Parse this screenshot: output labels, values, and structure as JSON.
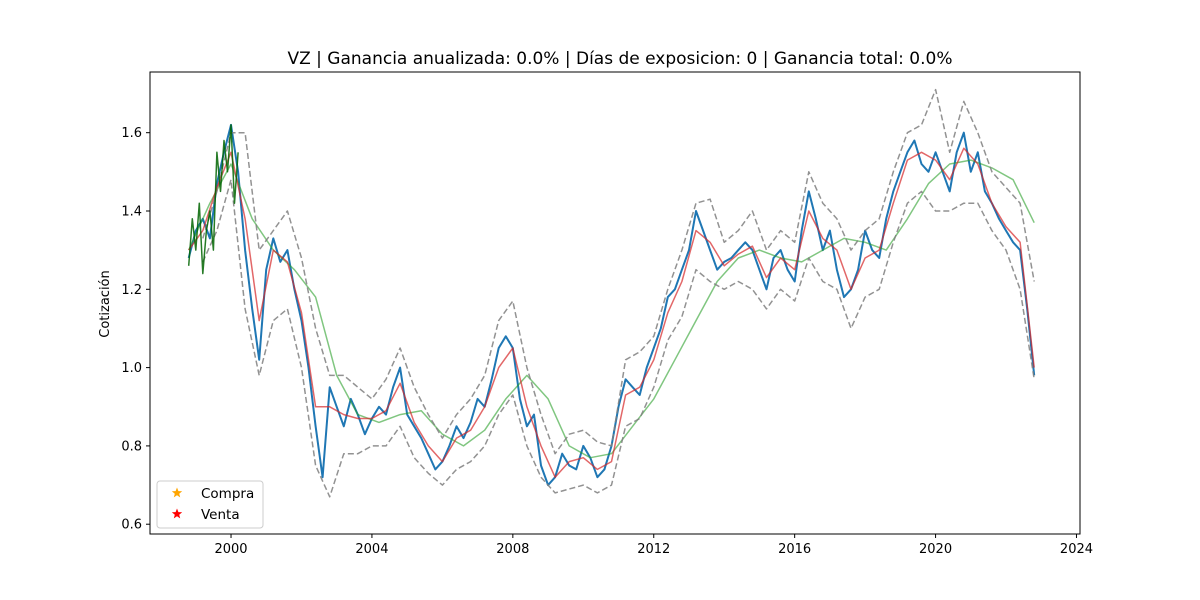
{
  "chart_data": {
    "type": "line",
    "title": "VZ | Ganancia anualizada:   0.0% | Días de exposicion:      0 | Ganancia total:   0.0%",
    "xlabel": "",
    "ylabel": "Cotización",
    "xlim": [
      1997.7,
      2024.1
    ],
    "ylim": [
      0.575,
      1.755
    ],
    "x_ticks": [
      2000,
      2004,
      2008,
      2012,
      2016,
      2020,
      2024
    ],
    "y_ticks": [
      0.6,
      0.8,
      1.0,
      1.2,
      1.4,
      1.6
    ],
    "grid": false,
    "legend": {
      "placement": "lower-left",
      "entries": [
        {
          "label": "Compra",
          "marker": "star",
          "color": "#ffa500"
        },
        {
          "label": "Venta",
          "marker": "star",
          "color": "#ff0000"
        }
      ]
    },
    "colors": {
      "price": "#1f77b4",
      "short_ma": "#d62728",
      "long_ma": "#2ca02c",
      "bands": "#7f7f7f",
      "early_segment": "#006400"
    },
    "series": [
      {
        "role": "price",
        "style": "solid",
        "x": [
          1998.8,
          1999.0,
          1999.2,
          1999.4,
          1999.6,
          1999.8,
          2000.0,
          2000.2,
          2000.4,
          2000.6,
          2000.8,
          2001.0,
          2001.2,
          2001.4,
          2001.6,
          2001.8,
          2002.0,
          2002.2,
          2002.4,
          2002.6,
          2002.8,
          2003.0,
          2003.2,
          2003.4,
          2003.6,
          2003.8,
          2004.0,
          2004.2,
          2004.4,
          2004.6,
          2004.8,
          2005.0,
          2005.2,
          2005.4,
          2005.6,
          2005.8,
          2006.0,
          2006.2,
          2006.4,
          2006.6,
          2006.8,
          2007.0,
          2007.2,
          2007.4,
          2007.6,
          2007.8,
          2008.0,
          2008.2,
          2008.4,
          2008.6,
          2008.8,
          2009.0,
          2009.2,
          2009.4,
          2009.6,
          2009.8,
          2010.0,
          2010.2,
          2010.4,
          2010.6,
          2010.8,
          2011.0,
          2011.2,
          2011.4,
          2011.6,
          2011.8,
          2012.0,
          2012.2,
          2012.4,
          2012.6,
          2012.8,
          2013.0,
          2013.2,
          2013.4,
          2013.6,
          2013.8,
          2014.0,
          2014.2,
          2014.4,
          2014.6,
          2014.8,
          2015.0,
          2015.2,
          2015.4,
          2015.6,
          2015.8,
          2016.0,
          2016.2,
          2016.4,
          2016.6,
          2016.8,
          2017.0,
          2017.2,
          2017.4,
          2017.6,
          2017.8,
          2018.0,
          2018.2,
          2018.4,
          2018.6,
          2018.8,
          2019.0,
          2019.2,
          2019.4,
          2019.6,
          2019.8,
          2020.0,
          2020.2,
          2020.4,
          2020.6,
          2020.8,
          2021.0,
          2021.2,
          2021.4,
          2021.6,
          2021.8,
          2022.0,
          2022.2,
          2022.4,
          2022.6,
          2022.8
        ],
        "y": [
          1.28,
          1.35,
          1.38,
          1.33,
          1.47,
          1.55,
          1.62,
          1.5,
          1.3,
          1.15,
          1.02,
          1.25,
          1.33,
          1.27,
          1.3,
          1.2,
          1.12,
          1.0,
          0.85,
          0.72,
          0.95,
          0.9,
          0.85,
          0.92,
          0.88,
          0.83,
          0.87,
          0.9,
          0.88,
          0.95,
          1.0,
          0.88,
          0.85,
          0.82,
          0.78,
          0.74,
          0.76,
          0.8,
          0.85,
          0.82,
          0.86,
          0.92,
          0.9,
          0.97,
          1.05,
          1.08,
          1.05,
          0.92,
          0.85,
          0.88,
          0.75,
          0.7,
          0.72,
          0.78,
          0.75,
          0.74,
          0.8,
          0.77,
          0.72,
          0.74,
          0.8,
          0.9,
          0.97,
          0.95,
          0.93,
          1.0,
          1.05,
          1.1,
          1.18,
          1.2,
          1.25,
          1.3,
          1.4,
          1.35,
          1.3,
          1.25,
          1.27,
          1.28,
          1.3,
          1.32,
          1.3,
          1.25,
          1.2,
          1.28,
          1.3,
          1.25,
          1.22,
          1.35,
          1.45,
          1.38,
          1.3,
          1.35,
          1.25,
          1.18,
          1.2,
          1.25,
          1.35,
          1.3,
          1.28,
          1.38,
          1.45,
          1.5,
          1.55,
          1.58,
          1.52,
          1.5,
          1.55,
          1.5,
          1.45,
          1.55,
          1.6,
          1.5,
          1.55,
          1.45,
          1.42,
          1.38,
          1.35,
          1.32,
          1.3,
          1.15,
          0.98
        ]
      },
      {
        "role": "short_ma",
        "style": "solid",
        "x": [
          1998.8,
          1999.2,
          1999.6,
          2000.0,
          2000.4,
          2000.8,
          2001.2,
          2001.6,
          2002.0,
          2002.4,
          2002.8,
          2003.2,
          2003.6,
          2004.0,
          2004.4,
          2004.8,
          2005.2,
          2005.6,
          2006.0,
          2006.4,
          2006.8,
          2007.2,
          2007.6,
          2008.0,
          2008.4,
          2008.8,
          2009.2,
          2009.6,
          2010.0,
          2010.4,
          2010.8,
          2011.2,
          2011.6,
          2012.0,
          2012.4,
          2012.8,
          2013.2,
          2013.6,
          2014.0,
          2014.4,
          2014.8,
          2015.2,
          2015.6,
          2016.0,
          2016.4,
          2016.8,
          2017.2,
          2017.6,
          2018.0,
          2018.4,
          2018.8,
          2019.2,
          2019.6,
          2020.0,
          2020.4,
          2020.8,
          2021.2,
          2021.6,
          2022.0,
          2022.4,
          2022.8
        ],
        "y": [
          1.3,
          1.35,
          1.46,
          1.55,
          1.38,
          1.12,
          1.3,
          1.27,
          1.14,
          0.9,
          0.9,
          0.88,
          0.87,
          0.87,
          0.89,
          0.96,
          0.86,
          0.8,
          0.76,
          0.82,
          0.84,
          0.9,
          1.0,
          1.05,
          0.9,
          0.8,
          0.72,
          0.76,
          0.77,
          0.74,
          0.76,
          0.93,
          0.95,
          1.02,
          1.14,
          1.22,
          1.35,
          1.32,
          1.26,
          1.29,
          1.31,
          1.23,
          1.28,
          1.25,
          1.4,
          1.33,
          1.3,
          1.2,
          1.28,
          1.3,
          1.42,
          1.53,
          1.55,
          1.53,
          1.48,
          1.56,
          1.52,
          1.42,
          1.36,
          1.32,
          1.0
        ]
      },
      {
        "role": "long_ma",
        "style": "solid",
        "x": [
          1998.8,
          1999.4,
          2000.0,
          2000.6,
          2001.2,
          2001.8,
          2002.4,
          2003.0,
          2003.6,
          2004.2,
          2004.8,
          2005.4,
          2006.0,
          2006.6,
          2007.2,
          2007.8,
          2008.4,
          2009.0,
          2009.6,
          2010.2,
          2010.8,
          2011.4,
          2012.0,
          2012.6,
          2013.2,
          2013.8,
          2014.4,
          2015.0,
          2015.6,
          2016.2,
          2016.8,
          2017.4,
          2018.0,
          2018.6,
          2019.2,
          2019.8,
          2020.4,
          2021.0,
          2021.6,
          2022.2,
          2022.8
        ],
        "y": [
          1.3,
          1.42,
          1.52,
          1.38,
          1.3,
          1.25,
          1.18,
          0.98,
          0.88,
          0.86,
          0.88,
          0.89,
          0.83,
          0.8,
          0.84,
          0.92,
          0.98,
          0.92,
          0.8,
          0.77,
          0.78,
          0.85,
          0.92,
          1.02,
          1.12,
          1.22,
          1.28,
          1.3,
          1.28,
          1.27,
          1.3,
          1.33,
          1.32,
          1.3,
          1.38,
          1.47,
          1.52,
          1.53,
          1.51,
          1.48,
          1.37
        ]
      },
      {
        "role": "upper_band",
        "style": "dashed",
        "x": [
          1999.2,
          1999.6,
          2000.0,
          2000.4,
          2000.8,
          2001.2,
          2001.6,
          2002.0,
          2002.4,
          2002.8,
          2003.2,
          2003.6,
          2004.0,
          2004.4,
          2004.8,
          2005.2,
          2005.6,
          2006.0,
          2006.4,
          2006.8,
          2007.2,
          2007.6,
          2008.0,
          2008.4,
          2008.8,
          2009.2,
          2009.6,
          2010.0,
          2010.4,
          2010.8,
          2011.2,
          2011.6,
          2012.0,
          2012.4,
          2012.8,
          2013.2,
          2013.6,
          2014.0,
          2014.4,
          2014.8,
          2015.2,
          2015.6,
          2016.0,
          2016.4,
          2016.8,
          2017.2,
          2017.6,
          2018.0,
          2018.4,
          2018.8,
          2019.2,
          2019.6,
          2020.0,
          2020.4,
          2020.8,
          2021.2,
          2021.6,
          2022.0,
          2022.4,
          2022.8
        ],
        "y": [
          1.33,
          1.45,
          1.6,
          1.6,
          1.3,
          1.35,
          1.4,
          1.28,
          1.1,
          0.98,
          0.98,
          0.95,
          0.92,
          0.97,
          1.05,
          0.95,
          0.88,
          0.82,
          0.88,
          0.92,
          0.98,
          1.12,
          1.17,
          1.0,
          0.88,
          0.78,
          0.83,
          0.84,
          0.81,
          0.8,
          1.02,
          1.04,
          1.08,
          1.2,
          1.3,
          1.42,
          1.43,
          1.32,
          1.35,
          1.4,
          1.3,
          1.35,
          1.32,
          1.5,
          1.42,
          1.38,
          1.3,
          1.35,
          1.38,
          1.5,
          1.6,
          1.62,
          1.71,
          1.55,
          1.68,
          1.6,
          1.5,
          1.46,
          1.42,
          1.22
        ]
      },
      {
        "role": "lower_band",
        "style": "dashed",
        "x": [
          1999.2,
          1999.6,
          2000.0,
          2000.4,
          2000.8,
          2001.2,
          2001.6,
          2002.0,
          2002.4,
          2002.8,
          2003.2,
          2003.6,
          2004.0,
          2004.4,
          2004.8,
          2005.2,
          2005.6,
          2006.0,
          2006.4,
          2006.8,
          2007.2,
          2007.6,
          2008.0,
          2008.4,
          2008.8,
          2009.2,
          2009.6,
          2010.0,
          2010.4,
          2010.8,
          2011.2,
          2011.6,
          2012.0,
          2012.4,
          2012.8,
          2013.2,
          2013.6,
          2014.0,
          2014.4,
          2014.8,
          2015.2,
          2015.6,
          2016.0,
          2016.4,
          2016.8,
          2017.2,
          2017.6,
          2018.0,
          2018.4,
          2018.8,
          2019.2,
          2019.6,
          2020.0,
          2020.4,
          2020.8,
          2021.2,
          2021.6,
          2022.0,
          2022.4,
          2022.8
        ],
        "y": [
          1.27,
          1.35,
          1.48,
          1.15,
          0.98,
          1.12,
          1.15,
          1.0,
          0.75,
          0.67,
          0.78,
          0.78,
          0.8,
          0.8,
          0.85,
          0.77,
          0.73,
          0.7,
          0.74,
          0.76,
          0.8,
          0.88,
          0.93,
          0.8,
          0.72,
          0.68,
          0.69,
          0.7,
          0.68,
          0.7,
          0.85,
          0.87,
          0.95,
          1.07,
          1.13,
          1.25,
          1.22,
          1.2,
          1.22,
          1.2,
          1.15,
          1.2,
          1.17,
          1.28,
          1.22,
          1.2,
          1.1,
          1.18,
          1.2,
          1.32,
          1.42,
          1.45,
          1.4,
          1.4,
          1.42,
          1.42,
          1.35,
          1.3,
          1.2,
          0.97
        ]
      },
      {
        "role": "early_segment",
        "style": "solid",
        "x": [
          1998.8,
          1998.9,
          1999.0,
          1999.1,
          1999.2,
          1999.3,
          1999.4,
          1999.5,
          1999.6,
          1999.7,
          1999.8,
          1999.9,
          2000.0,
          2000.1,
          2000.2
        ],
        "y": [
          1.26,
          1.38,
          1.3,
          1.42,
          1.24,
          1.35,
          1.4,
          1.3,
          1.55,
          1.45,
          1.58,
          1.5,
          1.62,
          1.42,
          1.55
        ]
      }
    ]
  }
}
